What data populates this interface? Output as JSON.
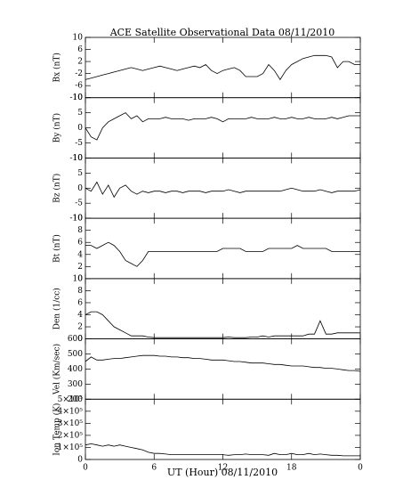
{
  "chart_data": {
    "type": "line",
    "title": "ACE Satellite Observational Data   08/11/2010",
    "xlabel": "UT (Hour)   08/11/2010",
    "xlim": [
      0,
      24
    ],
    "xticks": [
      0,
      6,
      12,
      18,
      {
        "value": 24,
        "label": "0"
      }
    ],
    "x": [
      0,
      0.5,
      1,
      1.5,
      2,
      2.5,
      3,
      3.5,
      4,
      4.5,
      5,
      5.5,
      6,
      6.5,
      7,
      7.5,
      8,
      8.5,
      9,
      9.5,
      10,
      10.5,
      11,
      11.5,
      12,
      12.5,
      13,
      13.5,
      14,
      14.5,
      15,
      15.5,
      16,
      16.5,
      17,
      17.5,
      18,
      18.5,
      19,
      19.5,
      20,
      20.5,
      21,
      21.5,
      22,
      22.5,
      23,
      23.5,
      24
    ],
    "panels": [
      {
        "ylabel": "Bx (nT)",
        "ylim": [
          -10,
          10
        ],
        "yticks": [
          -10,
          -6,
          -2,
          2,
          6,
          10
        ],
        "values": [
          -4,
          -3.5,
          -3,
          -2.5,
          -2,
          -1.5,
          -1,
          -0.5,
          0,
          -0.5,
          -1,
          -0.5,
          0,
          0.5,
          0,
          -0.5,
          -1,
          -0.5,
          0,
          0.5,
          0,
          1,
          -1,
          -2,
          -1,
          -0.5,
          0,
          -1,
          -3,
          -3,
          -3,
          -2,
          1,
          -1,
          -4,
          -1,
          1,
          2,
          3,
          3.5,
          4,
          4,
          4,
          3.5,
          0,
          2,
          2,
          1,
          1
        ]
      },
      {
        "ylabel": "By (nT)",
        "ylim": [
          -10,
          10
        ],
        "yticks": [
          -10,
          -5,
          0,
          5,
          10
        ],
        "values": [
          0,
          -3,
          -4,
          0,
          2,
          3,
          4,
          5,
          3,
          4,
          2,
          3,
          3,
          3,
          3.5,
          3,
          3,
          3,
          2.5,
          3,
          3,
          3,
          3.5,
          3,
          2,
          3,
          3,
          3,
          3,
          3.5,
          3,
          3,
          3,
          3.5,
          3,
          3,
          3.5,
          3,
          3,
          3.5,
          3,
          3,
          3,
          3.5,
          3,
          3.5,
          4,
          4,
          4
        ]
      },
      {
        "ylabel": "Bz (nT)",
        "ylim": [
          -10,
          10
        ],
        "yticks": [
          -10,
          -5,
          0,
          5,
          10
        ],
        "values": [
          0,
          -1,
          2,
          -2,
          1,
          -3,
          0,
          1,
          -1,
          -2,
          -1,
          -1.5,
          -1,
          -1,
          -1.5,
          -1,
          -1,
          -1.5,
          -1,
          -1,
          -1,
          -1.5,
          -1,
          -1,
          -1,
          -0.5,
          -1,
          -1.5,
          -1,
          -1,
          -1,
          -1,
          -1,
          -1,
          -1,
          -0.5,
          0,
          -0.5,
          -1,
          -1,
          -1,
          -0.5,
          -1,
          -1.5,
          -1,
          -1,
          -1,
          -1,
          -0.5
        ]
      },
      {
        "ylabel": "Bt (nT)",
        "ylim": [
          0,
          10
        ],
        "yticks": [
          0,
          2,
          4,
          6,
          8,
          10
        ],
        "values": [
          5.5,
          5.5,
          5,
          5.5,
          6,
          5.5,
          4.5,
          3,
          2.5,
          2,
          3,
          4.5,
          4.5,
          4.5,
          4.5,
          4.5,
          4.5,
          4.5,
          4.5,
          4.5,
          4.5,
          4.5,
          4.5,
          4.5,
          5,
          5,
          5,
          5,
          4.5,
          4.5,
          4.5,
          4.5,
          5,
          5,
          5,
          5,
          5,
          5.5,
          5,
          5,
          5,
          5,
          5,
          4.5,
          4.5,
          4.5,
          4.5,
          4.5,
          4.5
        ]
      },
      {
        "ylabel": "Den (1/cc)",
        "ylim": [
          0,
          10
        ],
        "yticks": [
          0,
          2,
          4,
          6,
          8,
          10
        ],
        "values": [
          4,
          4.5,
          4.5,
          4,
          3,
          2,
          1.5,
          1,
          0.5,
          0.5,
          0.5,
          0.3,
          0.2,
          0.2,
          0.2,
          0.2,
          0.2,
          0.2,
          0.2,
          0.2,
          0.2,
          0.2,
          0.2,
          0.2,
          0.2,
          0.3,
          0.2,
          0.2,
          0.2,
          0.3,
          0.3,
          0.5,
          0.3,
          0.5,
          0.5,
          0.5,
          0.5,
          0.5,
          0.5,
          0.8,
          0.8,
          3,
          0.8,
          0.8,
          1,
          1,
          1,
          1,
          1
        ]
      },
      {
        "ylabel": "Vel (Km/sec)",
        "ylim": [
          200,
          600
        ],
        "yticks": [
          200,
          300,
          400,
          500,
          600
        ],
        "values": [
          450,
          480,
          460,
          460,
          465,
          470,
          470,
          475,
          480,
          485,
          490,
          490,
          490,
          485,
          485,
          480,
          480,
          475,
          475,
          470,
          470,
          465,
          460,
          460,
          460,
          455,
          450,
          450,
          445,
          440,
          440,
          440,
          435,
          430,
          430,
          425,
          420,
          420,
          420,
          415,
          410,
          410,
          405,
          405,
          400,
          395,
          390,
          390,
          385
        ]
      },
      {
        "ylabel": "Ion Temp (K)",
        "ylim": [
          0,
          500000
        ],
        "yticks": [
          0,
          {
            "value": 100000,
            "label": "1×10⁵"
          },
          {
            "value": 200000,
            "label": "2×10⁵"
          },
          {
            "value": 300000,
            "label": "3×10⁵"
          },
          {
            "value": 400000,
            "label": "4×10⁵"
          },
          {
            "value": 500000,
            "label": "5×10⁵"
          }
        ],
        "values": [
          120000,
          130000,
          120000,
          110000,
          120000,
          110000,
          120000,
          110000,
          100000,
          90000,
          80000,
          60000,
          50000,
          50000,
          45000,
          40000,
          40000,
          40000,
          40000,
          40000,
          40000,
          40000,
          40000,
          40000,
          40000,
          35000,
          40000,
          40000,
          45000,
          40000,
          40000,
          40000,
          35000,
          50000,
          40000,
          40000,
          50000,
          40000,
          40000,
          50000,
          40000,
          45000,
          40000,
          35000,
          35000,
          30000,
          30000,
          30000,
          30000
        ]
      }
    ]
  }
}
